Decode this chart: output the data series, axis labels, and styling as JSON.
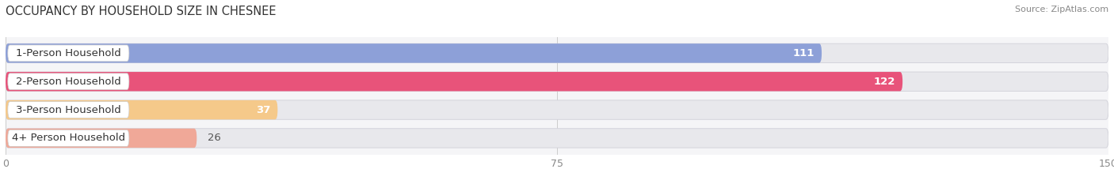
{
  "title": "OCCUPANCY BY HOUSEHOLD SIZE IN CHESNEE",
  "source": "Source: ZipAtlas.com",
  "categories": [
    "1-Person Household",
    "2-Person Household",
    "3-Person Household",
    "4+ Person Household"
  ],
  "values": [
    111,
    122,
    37,
    26
  ],
  "bar_colors": [
    "#8da0d8",
    "#e8537a",
    "#f5c98a",
    "#f0a898"
  ],
  "bar_bg_color": "#e8e8ec",
  "xlim": [
    0,
    150
  ],
  "xticks": [
    0,
    75,
    150
  ],
  "bar_height": 0.68,
  "label_fontsize": 9.5,
  "value_fontsize": 9.5,
  "title_fontsize": 10.5,
  "bg_color": "#ffffff",
  "axes_bg_color": "#f5f5f7"
}
